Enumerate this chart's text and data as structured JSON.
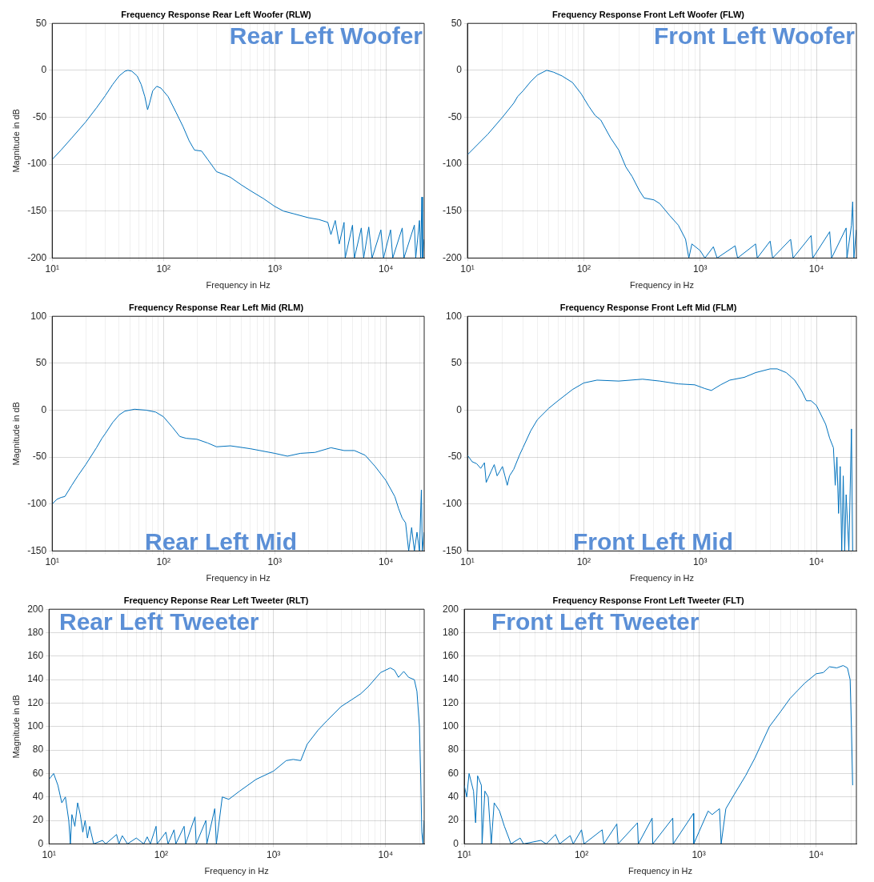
{
  "chart_data": [
    {
      "type": "line",
      "title": "Frequency Response Rear Left Woofer (RLW)",
      "xlabel": "Frequency in Hz",
      "ylabel": "Magnitude in dB",
      "annotations": [
        "Rear Left Woofer"
      ],
      "log": "x",
      "grid": true,
      "xlim": [
        10,
        22050
      ],
      "ylim": [
        -200,
        50
      ],
      "yticks": [
        -200,
        -150,
        -100,
        -50,
        0,
        50
      ],
      "xticks": [
        {
          "value": 10,
          "label": "10¹"
        },
        {
          "value": 20,
          "label": null
        },
        {
          "value": 30,
          "label": null
        },
        {
          "value": 40,
          "label": null
        },
        {
          "value": 50,
          "label": null
        },
        {
          "value": 60,
          "label": null
        },
        {
          "value": 70,
          "label": null
        },
        {
          "value": 80,
          "label": null
        },
        {
          "value": 90,
          "label": null
        },
        {
          "value": 100,
          "label": "10²"
        },
        {
          "value": 200,
          "label": null
        },
        {
          "value": 300,
          "label": null
        },
        {
          "value": 400,
          "label": null
        },
        {
          "value": 500,
          "label": null
        },
        {
          "value": 600,
          "label": null
        },
        {
          "value": 700,
          "label": null
        },
        {
          "value": 800,
          "label": null
        },
        {
          "value": 900,
          "label": null
        },
        {
          "value": 1000,
          "label": "10³"
        },
        {
          "value": 2000,
          "label": null
        },
        {
          "value": 3000,
          "label": null
        },
        {
          "value": 4000,
          "label": null
        },
        {
          "value": 5000,
          "label": null
        },
        {
          "value": 6000,
          "label": null
        },
        {
          "value": 7000,
          "label": null
        },
        {
          "value": 8000,
          "label": null
        },
        {
          "value": 9000,
          "label": null
        },
        {
          "value": 10000,
          "label": "10⁴"
        },
        {
          "value": 20000,
          "label": null
        }
      ],
      "series": [
        {
          "color": "#0072bd",
          "x": [
            10,
            12,
            15,
            20,
            25,
            28,
            30,
            35,
            40,
            45,
            48,
            52,
            58,
            63,
            68,
            72,
            75,
            80,
            87,
            95,
            110,
            130,
            150,
            170,
            190,
            220,
            250,
            300,
            350,
            400,
            500,
            600,
            800,
            1000,
            1200,
            1500,
            2000,
            2500,
            3000,
            3200,
            3500,
            3800,
            4200,
            4300,
            5000,
            5200,
            6000,
            6300,
            7000,
            7500,
            9000,
            9500,
            11000,
            11500,
            14000,
            14500,
            18000,
            18500,
            20000,
            20500,
            21000,
            21300,
            22000
          ],
          "values": [
            -95,
            -85,
            -72,
            -55,
            -40,
            -32,
            -27,
            -15,
            -6,
            -1,
            0,
            -1,
            -6,
            -15,
            -28,
            -42,
            -35,
            -22,
            -17,
            -19,
            -28,
            -45,
            -60,
            -75,
            -85,
            -86,
            -95,
            -108,
            -111,
            -114,
            -122,
            -128,
            -137,
            -145,
            -150,
            -153,
            -157,
            -159,
            -162,
            -175,
            -160,
            -185,
            -162,
            -200,
            -165,
            -200,
            -168,
            -200,
            -167,
            -200,
            -170,
            -200,
            -170,
            -200,
            -168,
            -200,
            -165,
            -200,
            -160,
            -200,
            -135,
            -200,
            -180
          ]
        }
      ]
    },
    {
      "type": "line",
      "title": "Frequency Response Front Left Woofer (FLW)",
      "xlabel": "Frequency in Hz",
      "annotations": [
        "Front Left Woofer"
      ],
      "log": "x",
      "grid": true,
      "xlim": [
        10,
        22050
      ],
      "ylim": [
        -200,
        50
      ],
      "yticks": [
        -200,
        -150,
        -100,
        -50,
        0,
        50
      ],
      "xticks": [
        {
          "value": 10,
          "label": "10¹"
        },
        {
          "value": 20,
          "label": null
        },
        {
          "value": 30,
          "label": null
        },
        {
          "value": 40,
          "label": null
        },
        {
          "value": 50,
          "label": null
        },
        {
          "value": 60,
          "label": null
        },
        {
          "value": 70,
          "label": null
        },
        {
          "value": 80,
          "label": null
        },
        {
          "value": 90,
          "label": null
        },
        {
          "value": 100,
          "label": "10²"
        },
        {
          "value": 200,
          "label": null
        },
        {
          "value": 300,
          "label": null
        },
        {
          "value": 400,
          "label": null
        },
        {
          "value": 500,
          "label": null
        },
        {
          "value": 600,
          "label": null
        },
        {
          "value": 700,
          "label": null
        },
        {
          "value": 800,
          "label": null
        },
        {
          "value": 900,
          "label": null
        },
        {
          "value": 1000,
          "label": "10³"
        },
        {
          "value": 2000,
          "label": null
        },
        {
          "value": 3000,
          "label": null
        },
        {
          "value": 4000,
          "label": null
        },
        {
          "value": 5000,
          "label": null
        },
        {
          "value": 6000,
          "label": null
        },
        {
          "value": 7000,
          "label": null
        },
        {
          "value": 8000,
          "label": null
        },
        {
          "value": 9000,
          "label": null
        },
        {
          "value": 10000,
          "label": "10⁴"
        },
        {
          "value": 20000,
          "label": null
        }
      ],
      "series": [
        {
          "color": "#0072bd",
          "x": [
            10,
            15,
            20,
            25,
            27,
            30,
            35,
            40,
            48,
            55,
            65,
            80,
            95,
            110,
            125,
            140,
            170,
            200,
            230,
            260,
            300,
            330,
            400,
            450,
            550,
            650,
            750,
            800,
            850,
            1000,
            1100,
            1300,
            1400,
            2000,
            2100,
            3000,
            3100,
            4000,
            4200,
            6000,
            6300,
            9000,
            9300,
            13000,
            13500,
            18000,
            18300,
            20000,
            20500,
            21000,
            22000
          ],
          "values": [
            -90,
            -68,
            -50,
            -35,
            -28,
            -22,
            -12,
            -5,
            0,
            -2,
            -6,
            -13,
            -25,
            -38,
            -48,
            -53,
            -72,
            -85,
            -103,
            -113,
            -128,
            -136,
            -138,
            -142,
            -155,
            -165,
            -180,
            -200,
            -185,
            -192,
            -200,
            -188,
            -200,
            -187,
            -200,
            -185,
            -200,
            -182,
            -200,
            -180,
            -200,
            -176,
            -200,
            -172,
            -200,
            -168,
            -200,
            -165,
            -140,
            -200,
            -170
          ]
        }
      ]
    },
    {
      "type": "line",
      "title": "Frequency Response Rear Left Mid (RLM)",
      "xlabel": "Frequency in Hz",
      "ylabel": "Magnitude in dB",
      "annotations": [
        "Rear Left Mid"
      ],
      "log": "x",
      "grid": true,
      "xlim": [
        10,
        22050
      ],
      "ylim": [
        -150,
        100
      ],
      "yticks": [
        -150,
        -100,
        -50,
        0,
        50,
        100
      ],
      "xticks": [
        {
          "value": 10,
          "label": "10¹"
        },
        {
          "value": 20,
          "label": null
        },
        {
          "value": 30,
          "label": null
        },
        {
          "value": 40,
          "label": null
        },
        {
          "value": 50,
          "label": null
        },
        {
          "value": 60,
          "label": null
        },
        {
          "value": 70,
          "label": null
        },
        {
          "value": 80,
          "label": null
        },
        {
          "value": 90,
          "label": null
        },
        {
          "value": 100,
          "label": "10²"
        },
        {
          "value": 200,
          "label": null
        },
        {
          "value": 300,
          "label": null
        },
        {
          "value": 400,
          "label": null
        },
        {
          "value": 500,
          "label": null
        },
        {
          "value": 600,
          "label": null
        },
        {
          "value": 700,
          "label": null
        },
        {
          "value": 800,
          "label": null
        },
        {
          "value": 900,
          "label": null
        },
        {
          "value": 1000,
          "label": "10³"
        },
        {
          "value": 2000,
          "label": null
        },
        {
          "value": 3000,
          "label": null
        },
        {
          "value": 4000,
          "label": null
        },
        {
          "value": 5000,
          "label": null
        },
        {
          "value": 6000,
          "label": null
        },
        {
          "value": 7000,
          "label": null
        },
        {
          "value": 8000,
          "label": null
        },
        {
          "value": 9000,
          "label": null
        },
        {
          "value": 10000,
          "label": "10⁴"
        },
        {
          "value": 20000,
          "label": null
        }
      ],
      "series": [
        {
          "color": "#0072bd",
          "x": [
            10,
            11,
            12,
            13,
            15,
            17,
            20,
            25,
            28,
            30,
            35,
            40,
            45,
            55,
            70,
            85,
            100,
            120,
            140,
            160,
            200,
            250,
            300,
            400,
            600,
            1000,
            1300,
            1700,
            2300,
            3200,
            4200,
            5200,
            6500,
            8000,
            10000,
            12000,
            13000,
            14000,
            15000,
            16000,
            17000,
            18000,
            19000,
            20000,
            20800,
            21200,
            22000
          ],
          "values": [
            -100,
            -95,
            -93,
            -92,
            -80,
            -70,
            -58,
            -40,
            -30,
            -25,
            -13,
            -5,
            -1,
            1,
            0,
            -2,
            -7,
            -18,
            -28,
            -30,
            -31,
            -35,
            -39,
            -38,
            -41,
            -46,
            -49,
            -46,
            -45,
            -40,
            -43,
            -43,
            -48,
            -60,
            -75,
            -92,
            -105,
            -115,
            -120,
            -150,
            -125,
            -150,
            -130,
            -150,
            -85,
            -150,
            -130
          ]
        }
      ]
    },
    {
      "type": "line",
      "title": "Frequency Response Front Left Mid (FLM)",
      "xlabel": "Frequency in Hz",
      "annotations": [
        "Front Left Mid"
      ],
      "log": "x",
      "grid": true,
      "xlim": [
        10,
        22050
      ],
      "ylim": [
        -150,
        100
      ],
      "yticks": [
        -150,
        -100,
        -50,
        0,
        50,
        100
      ],
      "xticks": [
        {
          "value": 10,
          "label": "10¹"
        },
        {
          "value": 20,
          "label": null
        },
        {
          "value": 30,
          "label": null
        },
        {
          "value": 40,
          "label": null
        },
        {
          "value": 50,
          "label": null
        },
        {
          "value": 60,
          "label": null
        },
        {
          "value": 70,
          "label": null
        },
        {
          "value": 80,
          "label": null
        },
        {
          "value": 90,
          "label": null
        },
        {
          "value": 100,
          "label": "10²"
        },
        {
          "value": 200,
          "label": null
        },
        {
          "value": 300,
          "label": null
        },
        {
          "value": 400,
          "label": null
        },
        {
          "value": 500,
          "label": null
        },
        {
          "value": 600,
          "label": null
        },
        {
          "value": 700,
          "label": null
        },
        {
          "value": 800,
          "label": null
        },
        {
          "value": 900,
          "label": null
        },
        {
          "value": 1000,
          "label": "10³"
        },
        {
          "value": 2000,
          "label": null
        },
        {
          "value": 3000,
          "label": null
        },
        {
          "value": 4000,
          "label": null
        },
        {
          "value": 5000,
          "label": null
        },
        {
          "value": 6000,
          "label": null
        },
        {
          "value": 7000,
          "label": null
        },
        {
          "value": 8000,
          "label": null
        },
        {
          "value": 9000,
          "label": null
        },
        {
          "value": 10000,
          "label": "10⁴"
        },
        {
          "value": 20000,
          "label": null
        }
      ],
      "series": [
        {
          "color": "#0072bd",
          "x": [
            10,
            11,
            12,
            13,
            14,
            14.5,
            16,
            17,
            18,
            19,
            20,
            21,
            22,
            23,
            25,
            28,
            30,
            35,
            40,
            50,
            60,
            80,
            100,
            130,
            200,
            320,
            450,
            650,
            900,
            1100,
            1250,
            1500,
            1800,
            2400,
            3000,
            4000,
            4600,
            5500,
            6500,
            7500,
            8200,
            9000,
            10000,
            12000,
            13000,
            14000,
            14500,
            15000,
            15500,
            16000,
            16500,
            17000,
            17500,
            18000,
            19000,
            20000,
            20500
          ],
          "values": [
            -48,
            -55,
            -57,
            -62,
            -56,
            -77,
            -65,
            -58,
            -70,
            -65,
            -60,
            -70,
            -80,
            -70,
            -63,
            -48,
            -40,
            -22,
            -10,
            2,
            10,
            22,
            29,
            32,
            31,
            33,
            31,
            28,
            27,
            23,
            21,
            27,
            32,
            35,
            40,
            44,
            44,
            40,
            32,
            20,
            10,
            10,
            5,
            -15,
            -30,
            -40,
            -80,
            -50,
            -110,
            -60,
            -150,
            -70,
            -150,
            -90,
            -150,
            -20,
            -150
          ]
        }
      ]
    },
    {
      "type": "line",
      "title": "Frequency Reponse Rear Left Tweeter (RLT)",
      "xlabel": "Frequency in Hz",
      "ylabel": "Magnitude in dB",
      "annotations": [
        "Rear Left Tweeter"
      ],
      "log": "x",
      "grid": true,
      "xlim": [
        10,
        22050
      ],
      "ylim": [
        0,
        200
      ],
      "yticks": [
        0,
        20,
        40,
        60,
        80,
        100,
        120,
        140,
        160,
        180,
        200
      ],
      "xticks": [
        {
          "value": 10,
          "label": "10¹"
        },
        {
          "value": 20,
          "label": null
        },
        {
          "value": 30,
          "label": null
        },
        {
          "value": 40,
          "label": null
        },
        {
          "value": 50,
          "label": null
        },
        {
          "value": 60,
          "label": null
        },
        {
          "value": 70,
          "label": null
        },
        {
          "value": 80,
          "label": null
        },
        {
          "value": 90,
          "label": null
        },
        {
          "value": 100,
          "label": "10²"
        },
        {
          "value": 200,
          "label": null
        },
        {
          "value": 300,
          "label": null
        },
        {
          "value": 400,
          "label": null
        },
        {
          "value": 500,
          "label": null
        },
        {
          "value": 600,
          "label": null
        },
        {
          "value": 700,
          "label": null
        },
        {
          "value": 800,
          "label": null
        },
        {
          "value": 900,
          "label": null
        },
        {
          "value": 1000,
          "label": "10³"
        },
        {
          "value": 2000,
          "label": null
        },
        {
          "value": 3000,
          "label": null
        },
        {
          "value": 4000,
          "label": null
        },
        {
          "value": 5000,
          "label": null
        },
        {
          "value": 6000,
          "label": null
        },
        {
          "value": 7000,
          "label": null
        },
        {
          "value": 8000,
          "label": null
        },
        {
          "value": 9000,
          "label": null
        },
        {
          "value": 10000,
          "label": "10⁴"
        },
        {
          "value": 20000,
          "label": null
        }
      ],
      "series": [
        {
          "color": "#0072bd",
          "x": [
            10,
            11,
            12,
            13,
            14,
            15,
            15.5,
            16,
            17,
            18,
            19,
            20,
            21,
            22,
            23,
            25,
            30,
            32,
            40,
            42,
            45,
            50,
            60,
            70,
            75,
            80,
            90,
            92,
            110,
            115,
            130,
            135,
            160,
            165,
            200,
            205,
            250,
            255,
            300,
            310,
            350,
            400,
            500,
            700,
            1000,
            1300,
            1500,
            1750,
            2000,
            2500,
            3000,
            4000,
            5000,
            6000,
            7000,
            9000,
            11000,
            12000,
            13000,
            14500,
            16000,
            18000,
            19000,
            20000,
            20500,
            21000,
            21500,
            22000
          ],
          "values": [
            55,
            60,
            50,
            35,
            40,
            20,
            0,
            25,
            15,
            35,
            25,
            10,
            20,
            5,
            15,
            0,
            3,
            0,
            8,
            0,
            7,
            0,
            5,
            0,
            6,
            0,
            15,
            0,
            10,
            0,
            12,
            0,
            15,
            0,
            23,
            0,
            20,
            0,
            30,
            0,
            40,
            38,
            45,
            55,
            62,
            71,
            72,
            71,
            85,
            97,
            105,
            117,
            123,
            128,
            134,
            146,
            150,
            148,
            142,
            147,
            142,
            140,
            130,
            100,
            60,
            10,
            0,
            20
          ]
        }
      ]
    },
    {
      "type": "line",
      "title": "Frequency Response Front Left Tweeter (FLT)",
      "xlabel": "Frequency in Hz",
      "annotations": [
        "Front Left Tweeter"
      ],
      "log": "x",
      "grid": true,
      "xlim": [
        10,
        22050
      ],
      "ylim": [
        0,
        200
      ],
      "yticks": [
        0,
        20,
        40,
        60,
        80,
        100,
        120,
        140,
        160,
        180,
        200
      ],
      "xticks": [
        {
          "value": 10,
          "label": "10¹"
        },
        {
          "value": 20,
          "label": null
        },
        {
          "value": 30,
          "label": null
        },
        {
          "value": 40,
          "label": null
        },
        {
          "value": 50,
          "label": null
        },
        {
          "value": 60,
          "label": null
        },
        {
          "value": 70,
          "label": null
        },
        {
          "value": 80,
          "label": null
        },
        {
          "value": 90,
          "label": null
        },
        {
          "value": 100,
          "label": "10²"
        },
        {
          "value": 200,
          "label": null
        },
        {
          "value": 300,
          "label": null
        },
        {
          "value": 400,
          "label": null
        },
        {
          "value": 500,
          "label": null
        },
        {
          "value": 600,
          "label": null
        },
        {
          "value": 700,
          "label": null
        },
        {
          "value": 800,
          "label": null
        },
        {
          "value": 900,
          "label": null
        },
        {
          "value": 1000,
          "label": "10³"
        },
        {
          "value": 2000,
          "label": null
        },
        {
          "value": 3000,
          "label": null
        },
        {
          "value": 4000,
          "label": null
        },
        {
          "value": 5000,
          "label": null
        },
        {
          "value": 6000,
          "label": null
        },
        {
          "value": 7000,
          "label": null
        },
        {
          "value": 8000,
          "label": null
        },
        {
          "value": 9000,
          "label": null
        },
        {
          "value": 10000,
          "label": "10⁴"
        },
        {
          "value": 20000,
          "label": null
        }
      ],
      "series": [
        {
          "color": "#0072bd",
          "x": [
            10,
            10.5,
            11,
            12,
            12.5,
            13,
            14,
            14.2,
            15,
            16,
            17,
            18,
            20,
            22,
            24,
            25,
            30,
            32,
            45,
            50,
            60,
            65,
            80,
            85,
            100,
            105,
            150,
            155,
            200,
            205,
            300,
            305,
            400,
            405,
            600,
            605,
            900,
            905,
            1200,
            1300,
            1500,
            1550,
            1700,
            2000,
            2500,
            3000,
            4000,
            5000,
            6000,
            7000,
            8000,
            10000,
            11500,
            13000,
            15000,
            17000,
            18500,
            19500,
            20000,
            20500
          ],
          "values": [
            50,
            40,
            60,
            45,
            18,
            58,
            50,
            0,
            45,
            40,
            0,
            35,
            28,
            15,
            5,
            0,
            5,
            0,
            3,
            0,
            8,
            0,
            7,
            0,
            12,
            0,
            12,
            0,
            17,
            0,
            18,
            0,
            22,
            0,
            22,
            0,
            26,
            0,
            28,
            25,
            30,
            0,
            30,
            42,
            58,
            73,
            100,
            113,
            124,
            131,
            137,
            145,
            146,
            151,
            150,
            152,
            150,
            140,
            100,
            50
          ]
        }
      ]
    }
  ]
}
